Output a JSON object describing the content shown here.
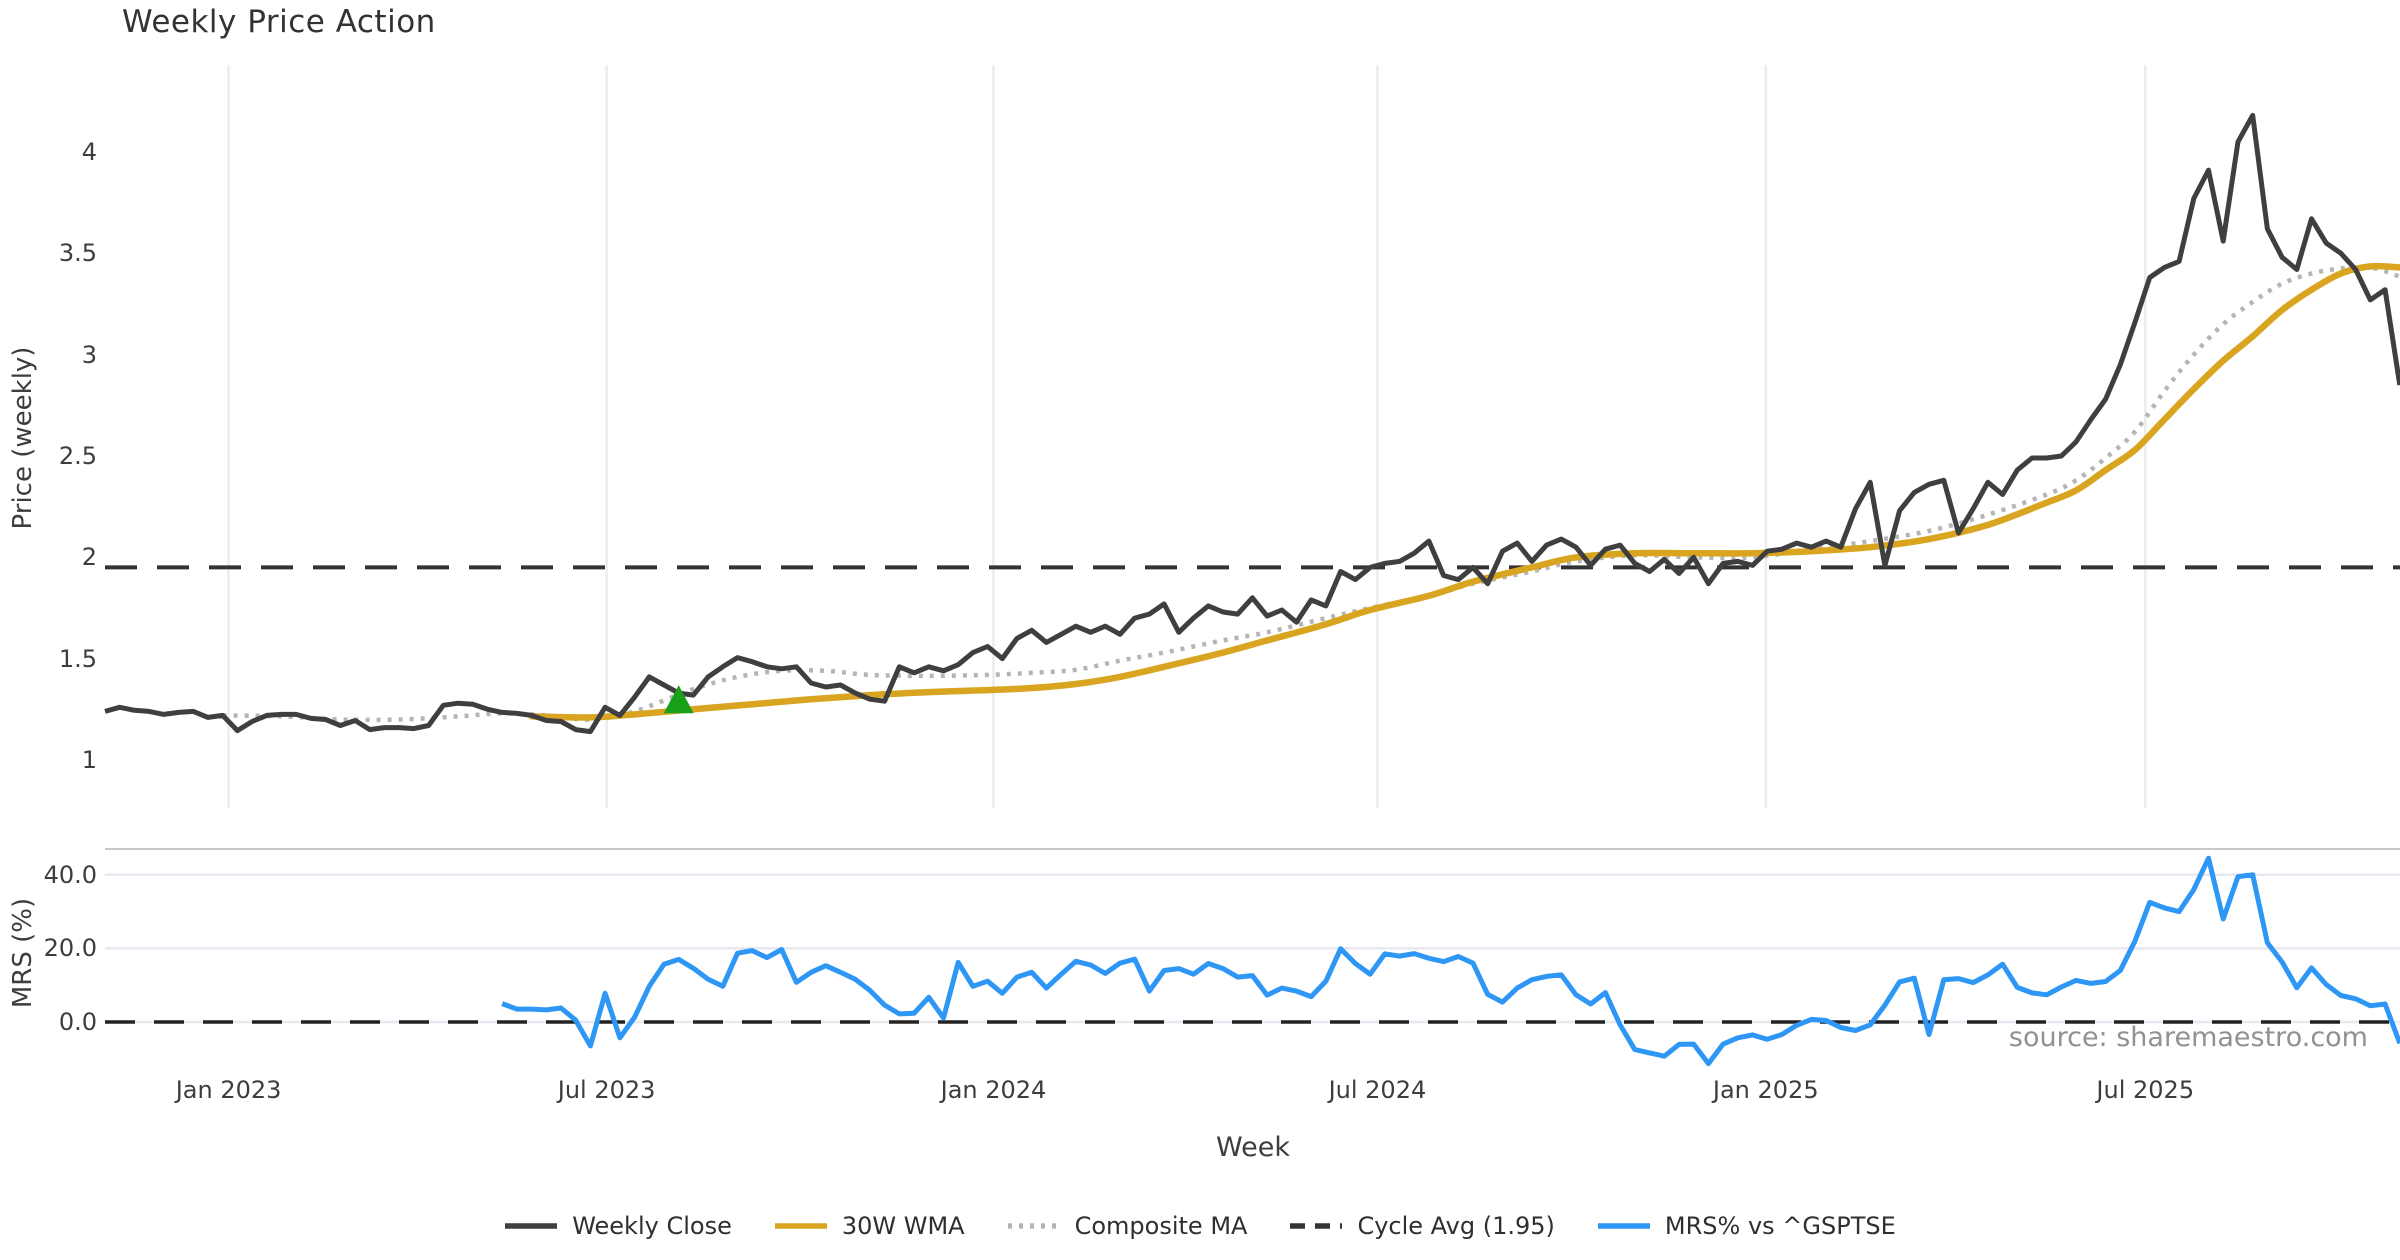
{
  "title": "Weekly Price Action",
  "source_text": "source: sharemaestro.com",
  "price_axis": {
    "label": "Price (weekly)",
    "ticks": [
      "1",
      "1.5",
      "2",
      "2.5",
      "3",
      "3.5",
      "4"
    ]
  },
  "mrs_axis": {
    "label": "MRS (%)",
    "ticks": [
      "0.0",
      "20.0",
      "40.0"
    ]
  },
  "x_axis": {
    "label": "Week",
    "ticks": [
      {
        "label": "Jan 2023",
        "week_index": 8.4
      },
      {
        "label": "Jul 2023",
        "week_index": 34.1
      },
      {
        "label": "Jan 2024",
        "week_index": 60.4
      },
      {
        "label": "Jul 2024",
        "week_index": 86.5
      },
      {
        "label": "Jan 2025",
        "week_index": 112.9
      },
      {
        "label": "Jul 2025",
        "week_index": 138.7
      }
    ]
  },
  "legend": [
    {
      "label": "Weekly Close",
      "color": "#3f3f3f",
      "style": "solid"
    },
    {
      "label": "30W WMA",
      "color": "#D9A521",
      "style": "solid"
    },
    {
      "label": "Composite MA",
      "color": "#b5b5b5",
      "style": "dotted"
    },
    {
      "label": "Cycle Avg (1.95)",
      "color": "#333333",
      "style": "dashed"
    },
    {
      "label": "MRS% vs ^GSPTSE",
      "color": "#2E96F5",
      "style": "solid"
    }
  ],
  "colors": {
    "weekly_close": "#3f3f3f",
    "wma": "#D9A521",
    "composite": "#b5b5b5",
    "cycle_avg": "#333333",
    "mrs": "#2E96F5",
    "signal_marker": "#18A018",
    "grid": "#ececec",
    "mrs_grid": "#e8e8f0",
    "spine": "#c9c9c9"
  },
  "chart_data": [
    {
      "panel": "price",
      "type": "line",
      "x_unit": "week_index",
      "title": "Weekly Price Action",
      "ylabel": "Price (weekly)",
      "ylim": [
        0.76,
        4.43
      ],
      "grid": "vertical-only",
      "cycle_avg_value": 1.95,
      "signal_marker": {
        "shape": "triangle-up",
        "color": "#18A018",
        "week_index": 39,
        "value": 1.3
      },
      "series": [
        {
          "name": "Weekly Close",
          "style": "solid",
          "start_index": 0,
          "values": [
            1.24,
            1.26,
            1.245,
            1.24,
            1.225,
            1.235,
            1.24,
            1.21,
            1.22,
            1.145,
            1.19,
            1.22,
            1.225,
            1.225,
            1.205,
            1.2,
            1.17,
            1.195,
            1.15,
            1.16,
            1.16,
            1.155,
            1.17,
            1.27,
            1.28,
            1.275,
            1.25,
            1.235,
            1.23,
            1.22,
            1.195,
            1.19,
            1.15,
            1.14,
            1.26,
            1.22,
            1.31,
            1.41,
            1.37,
            1.33,
            1.32,
            1.41,
            1.46,
            1.505,
            1.485,
            1.46,
            1.45,
            1.46,
            1.38,
            1.36,
            1.37,
            1.33,
            1.3,
            1.29,
            1.46,
            1.43,
            1.46,
            1.44,
            1.47,
            1.53,
            1.56,
            1.5,
            1.6,
            1.64,
            1.58,
            1.62,
            1.66,
            1.63,
            1.66,
            1.62,
            1.7,
            1.72,
            1.77,
            1.63,
            1.7,
            1.76,
            1.73,
            1.72,
            1.8,
            1.71,
            1.74,
            1.68,
            1.79,
            1.76,
            1.93,
            1.89,
            1.95,
            1.97,
            1.98,
            2.02,
            2.08,
            1.91,
            1.89,
            1.95,
            1.87,
            2.03,
            2.07,
            1.98,
            2.06,
            2.09,
            2.05,
            1.96,
            2.04,
            2.06,
            1.97,
            1.93,
            1.99,
            1.92,
            2.0,
            1.87,
            1.97,
            1.98,
            1.96,
            2.03,
            2.04,
            2.07,
            2.05,
            2.08,
            2.05,
            2.24,
            2.37,
            1.96,
            2.23,
            2.32,
            2.36,
            2.38,
            2.12,
            2.24,
            2.37,
            2.31,
            2.43,
            2.49,
            2.49,
            2.5,
            2.57,
            2.68,
            2.78,
            2.95,
            3.16,
            3.38,
            3.43,
            3.46,
            3.77,
            3.91,
            3.56,
            4.05,
            4.18,
            3.62,
            3.48,
            3.42,
            3.67,
            3.55,
            3.5,
            3.42,
            3.27,
            3.32,
            2.85
          ]
        },
        {
          "name": "30W WMA",
          "style": "solid",
          "format": "anchors [week_index, value]",
          "anchors": [
            [
              29,
              1.215
            ],
            [
              33,
              1.21
            ],
            [
              36,
              1.225
            ],
            [
              40,
              1.25
            ],
            [
              44,
              1.275
            ],
            [
              48,
              1.3
            ],
            [
              52,
              1.32
            ],
            [
              56,
              1.335
            ],
            [
              60,
              1.345
            ],
            [
              63,
              1.355
            ],
            [
              66,
              1.375
            ],
            [
              69,
              1.41
            ],
            [
              72,
              1.46
            ],
            [
              76,
              1.53
            ],
            [
              79,
              1.59
            ],
            [
              83,
              1.67
            ],
            [
              86,
              1.74
            ],
            [
              90,
              1.81
            ],
            [
              93,
              1.88
            ],
            [
              97,
              1.95
            ],
            [
              100,
              2.0
            ],
            [
              104,
              2.02
            ],
            [
              108,
              2.02
            ],
            [
              112,
              2.02
            ],
            [
              116,
              2.03
            ],
            [
              120,
              2.05
            ],
            [
              124,
              2.09
            ],
            [
              128,
              2.16
            ],
            [
              132,
              2.27
            ],
            [
              134,
              2.33
            ],
            [
              136,
              2.43
            ],
            [
              138,
              2.53
            ],
            [
              140,
              2.68
            ],
            [
              142,
              2.83
            ],
            [
              144,
              2.97
            ],
            [
              146,
              3.09
            ],
            [
              148,
              3.22
            ],
            [
              150,
              3.32
            ],
            [
              152,
              3.4
            ],
            [
              154,
              3.435
            ],
            [
              156,
              3.43
            ]
          ]
        },
        {
          "name": "Composite MA",
          "style": "dotted",
          "format": "anchors [week_index, value]",
          "anchors": [
            [
              8,
              1.22
            ],
            [
              12,
              1.215
            ],
            [
              16,
              1.2
            ],
            [
              20,
              1.2
            ],
            [
              24,
              1.215
            ],
            [
              27,
              1.23
            ],
            [
              30,
              1.22
            ],
            [
              33,
              1.2
            ],
            [
              36,
              1.24
            ],
            [
              40,
              1.35
            ],
            [
              43,
              1.41
            ],
            [
              46,
              1.44
            ],
            [
              49,
              1.44
            ],
            [
              52,
              1.42
            ],
            [
              56,
              1.415
            ],
            [
              60,
              1.42
            ],
            [
              63,
              1.43
            ],
            [
              66,
              1.445
            ],
            [
              69,
              1.49
            ],
            [
              72,
              1.53
            ],
            [
              76,
              1.59
            ],
            [
              79,
              1.63
            ],
            [
              83,
              1.7
            ],
            [
              86,
              1.75
            ],
            [
              90,
              1.81
            ],
            [
              93,
              1.87
            ],
            [
              97,
              1.93
            ],
            [
              100,
              1.98
            ],
            [
              104,
              2.01
            ],
            [
              108,
              2.0
            ],
            [
              112,
              2.0
            ],
            [
              116,
              2.04
            ],
            [
              120,
              2.08
            ],
            [
              124,
              2.13
            ],
            [
              128,
              2.21
            ],
            [
              132,
              2.31
            ],
            [
              134,
              2.38
            ],
            [
              136,
              2.49
            ],
            [
              138,
              2.62
            ],
            [
              140,
              2.82
            ],
            [
              142,
              3.0
            ],
            [
              144,
              3.15
            ],
            [
              146,
              3.26
            ],
            [
              148,
              3.35
            ],
            [
              150,
              3.4
            ],
            [
              152,
              3.425
            ],
            [
              154,
              3.43
            ],
            [
              156,
              3.385
            ]
          ]
        },
        {
          "name": "Cycle Avg (1.95)",
          "style": "dashed",
          "constant_value": 1.95
        }
      ]
    },
    {
      "panel": "mrs",
      "type": "line",
      "x_unit": "week_index",
      "ylabel": "MRS (%)",
      "ylim": [
        -11.7,
        47.0
      ],
      "grid": "horizontal-only",
      "zero_line": {
        "style": "dashed",
        "value": 0
      },
      "series": [
        {
          "name": "MRS% vs ^GSPTSE",
          "style": "solid",
          "start_index": 27,
          "values": [
            5,
            3.5,
            3.5,
            3.3,
            3.8,
            0.5,
            -6.5,
            7.8,
            -4.3,
            1.3,
            9.7,
            15.7,
            17.0,
            14.6,
            11.6,
            9.7,
            18.7,
            19.4,
            17.5,
            19.7,
            10.8,
            13.5,
            15.3,
            13.5,
            11.6,
            8.6,
            4.6,
            2.2,
            2.4,
            6.7,
            1.1,
            16.2,
            9.7,
            11.1,
            7.8,
            12.2,
            13.5,
            9.2,
            13,
            16.5,
            15.5,
            13.2,
            16,
            17.1,
            8.4,
            14.0,
            14.5,
            13.0,
            15.9,
            14.5,
            12.2,
            12.6,
            7.3,
            9.2,
            8.4,
            6.9,
            11.1,
            19.9,
            15.9,
            13.0,
            18.5,
            17.9,
            18.6,
            17.3,
            16.4,
            17.8,
            16.0,
            7.5,
            5.4,
            9.2,
            11.5,
            12.4,
            12.8,
            7.4,
            4.9,
            8.0,
            -0.8,
            -7.5,
            -8.4,
            -9.3,
            -6.1,
            -6.0,
            -11.3,
            -6.0,
            -4.3,
            -3.5,
            -4.7,
            -3.4,
            -0.9,
            0.7,
            0.4,
            -1.5,
            -2.3,
            -0.8,
            4.6,
            10.9,
            11.9,
            -3.4,
            11.5,
            11.8,
            10.7,
            12.8,
            15.7,
            9.4,
            7.9,
            7.4,
            9.5,
            11.3,
            10.5,
            11.0,
            14,
            22,
            32.5,
            31,
            30,
            36,
            44.5,
            28,
            39.5,
            40,
            21.5,
            16.3,
            9.3,
            14.7,
            10.2,
            7.2,
            6.3,
            4.4,
            4.9,
            -5.8
          ]
        }
      ]
    }
  ]
}
